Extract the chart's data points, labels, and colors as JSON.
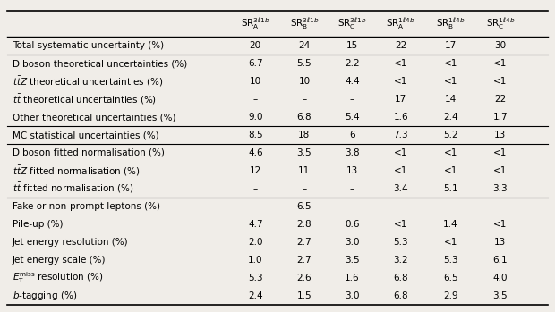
{
  "col_headers": [
    "SR$_\\mathrm{A}^{3\\ell1b}$",
    "SR$_\\mathrm{B}^{3\\ell1b}$",
    "SR$_\\mathrm{C}^{3\\ell1b}$",
    "SR$_\\mathrm{A}^{1\\ell4b}$",
    "SR$_\\mathrm{B}^{1\\ell4b}$",
    "SR$_\\mathrm{C}^{1\\ell4b}$"
  ],
  "rows": [
    {
      "label": "Total systematic uncertainty (%)",
      "values": [
        "20",
        "24",
        "15",
        "22",
        "17",
        "30"
      ],
      "separator_before": true,
      "separator_after": true,
      "bold": false
    },
    {
      "label": "Diboson theoretical uncertainties (%)",
      "values": [
        "6.7",
        "5.5",
        "2.2",
        "<1",
        "<1",
        "<1"
      ],
      "separator_before": false,
      "separator_after": false,
      "bold": false
    },
    {
      "label": "$t\\bar{t}Z$ theoretical uncertainties (%)",
      "values": [
        "10",
        "10",
        "4.4",
        "<1",
        "<1",
        "<1"
      ],
      "separator_before": false,
      "separator_after": false,
      "bold": false
    },
    {
      "label": "$t\\bar{t}$ theoretical uncertainties (%)",
      "values": [
        "–",
        "–",
        "–",
        "17",
        "14",
        "22"
      ],
      "separator_before": false,
      "separator_after": false,
      "bold": false
    },
    {
      "label": "Other theoretical uncertainties (%)",
      "values": [
        "9.0",
        "6.8",
        "5.4",
        "1.6",
        "2.4",
        "1.7"
      ],
      "separator_before": false,
      "separator_after": true,
      "bold": false
    },
    {
      "label": "MC statistical uncertainties (%)",
      "values": [
        "8.5",
        "18",
        "6",
        "7.3",
        "5.2",
        "13"
      ],
      "separator_before": false,
      "separator_after": true,
      "bold": false
    },
    {
      "label": "Diboson fitted normalisation (%)",
      "values": [
        "4.6",
        "3.5",
        "3.8",
        "<1",
        "<1",
        "<1"
      ],
      "separator_before": false,
      "separator_after": false,
      "bold": false
    },
    {
      "label": "$t\\bar{t}Z$ fitted normalisation (%)",
      "values": [
        "12",
        "11",
        "13",
        "<1",
        "<1",
        "<1"
      ],
      "separator_before": false,
      "separator_after": false,
      "bold": false
    },
    {
      "label": "$t\\bar{t}$ fitted normalisation (%)",
      "values": [
        "–",
        "–",
        "–",
        "3.4",
        "5.1",
        "3.3"
      ],
      "separator_before": false,
      "separator_after": true,
      "bold": false
    },
    {
      "label": "Fake or non-prompt leptons (%)",
      "values": [
        "–",
        "6.5",
        "–",
        "–",
        "–",
        "–"
      ],
      "separator_before": false,
      "separator_after": false,
      "bold": false
    },
    {
      "label": "Pile-up (%)",
      "values": [
        "4.7",
        "2.8",
        "0.6",
        "<1",
        "1.4",
        "<1"
      ],
      "separator_before": false,
      "separator_after": false,
      "bold": false
    },
    {
      "label": "Jet energy resolution (%)",
      "values": [
        "2.0",
        "2.7",
        "3.0",
        "5.3",
        "<1",
        "13"
      ],
      "separator_before": false,
      "separator_after": false,
      "bold": false
    },
    {
      "label": "Jet energy scale (%)",
      "values": [
        "1.0",
        "2.7",
        "3.5",
        "3.2",
        "5.3",
        "6.1"
      ],
      "separator_before": false,
      "separator_after": false,
      "bold": false
    },
    {
      "label": "$E_\\mathrm{T}^\\mathrm{miss}$ resolution (%)",
      "values": [
        "5.3",
        "2.6",
        "1.6",
        "6.8",
        "6.5",
        "4.0"
      ],
      "separator_before": false,
      "separator_after": false,
      "bold": false
    },
    {
      "label": "$b$-tagging (%)",
      "values": [
        "2.4",
        "1.5",
        "3.0",
        "6.8",
        "2.9",
        "3.5"
      ],
      "separator_before": false,
      "separator_after": false,
      "bold": false
    }
  ],
  "figsize": [
    6.2,
    3.49
  ],
  "dpi": 100,
  "bg_color": "#f0ede8",
  "font_size": 7.5,
  "header_font_size": 7.5
}
